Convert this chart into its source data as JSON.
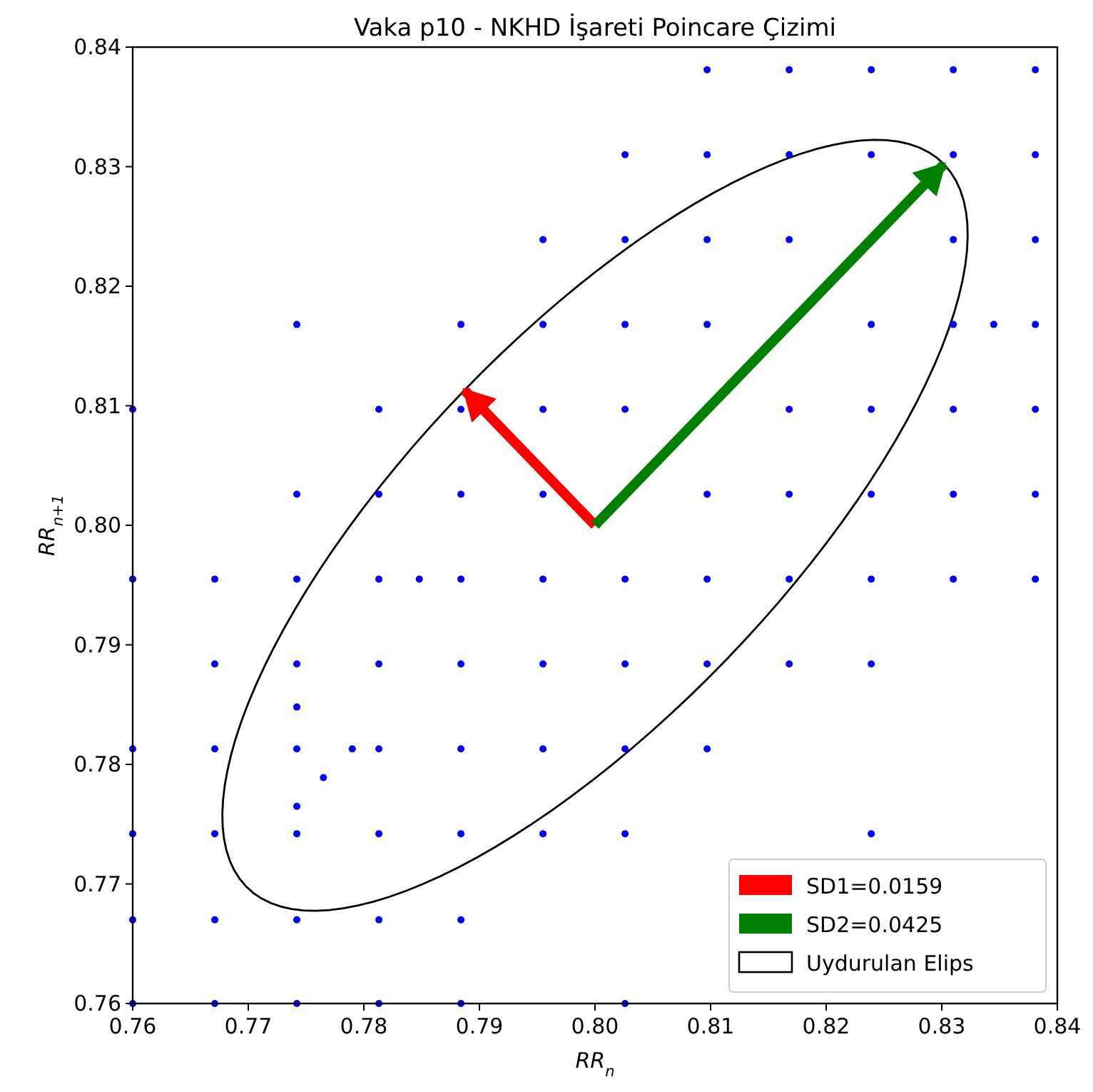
{
  "chart_data": {
    "type": "scatter",
    "title": "Vaka p10 - NKHD İşareti Poincare Çizimi",
    "xlabel": "RR$_{n}$",
    "ylabel": "RR$_{n+1}$",
    "xlim": [
      0.76,
      0.84
    ],
    "ylim": [
      0.76,
      0.84
    ],
    "xticks": [
      0.76,
      0.77,
      0.78,
      0.79,
      {
        "value": 0.8,
        "label": "0.80"
      },
      0.81,
      0.82,
      0.83,
      0.84
    ],
    "yticks": [
      0.76,
      0.77,
      0.78,
      0.79,
      {
        "value": 0.8,
        "label": "0.80"
      },
      0.81,
      0.82,
      0.83,
      0.84
    ],
    "grid": false,
    "legend": "bottom right",
    "marker": "circle",
    "series": [
      {
        "color": "#0000ff",
        "x": [
          0.8097,
          0.8168,
          0.8239,
          0.831,
          0.8381,
          0.8026,
          0.8097,
          0.8168,
          0.8239,
          0.831,
          0.8381,
          0.7955,
          0.8026,
          0.8097,
          0.8168,
          0.831,
          0.8381,
          0.7742,
          0.7884,
          0.7955,
          0.8026,
          0.8097,
          0.8239,
          0.831,
          0.8345,
          0.8381,
          0.76,
          0.7813,
          0.7884,
          0.7955,
          0.8026,
          0.8168,
          0.8239,
          0.831,
          0.8381,
          0.7742,
          0.7813,
          0.7884,
          0.7955,
          0.8097,
          0.8168,
          0.8239,
          0.831,
          0.8381,
          0.76,
          0.7671,
          0.7742,
          0.7813,
          0.7848,
          0.7884,
          0.7955,
          0.8026,
          0.8097,
          0.8168,
          0.8239,
          0.831,
          0.8381,
          0.7671,
          0.7742,
          0.7813,
          0.7884,
          0.7955,
          0.8026,
          0.8097,
          0.8168,
          0.8239,
          0.7742,
          0.76,
          0.7671,
          0.7742,
          0.779,
          0.7813,
          0.7884,
          0.7955,
          0.8026,
          0.8097,
          0.7765,
          0.7742,
          0.76,
          0.7671,
          0.7742,
          0.7813,
          0.7884,
          0.7955,
          0.8026,
          0.8239,
          0.76,
          0.7671,
          0.7742,
          0.7813,
          0.7884,
          0.76,
          0.7671,
          0.7742,
          0.7813,
          0.7884,
          0.8026
        ],
        "values": [
          0.8381,
          0.8381,
          0.8381,
          0.8381,
          0.8381,
          0.831,
          0.831,
          0.831,
          0.831,
          0.831,
          0.831,
          0.8239,
          0.8239,
          0.8239,
          0.8239,
          0.8239,
          0.8239,
          0.8168,
          0.8168,
          0.8168,
          0.8168,
          0.8168,
          0.8168,
          0.8168,
          0.8168,
          0.8168,
          0.8097,
          0.8097,
          0.8097,
          0.8097,
          0.8097,
          0.8097,
          0.8097,
          0.8097,
          0.8097,
          0.8026,
          0.8026,
          0.8026,
          0.8026,
          0.8026,
          0.8026,
          0.8026,
          0.8026,
          0.8026,
          0.7955,
          0.7955,
          0.7955,
          0.7955,
          0.7955,
          0.7955,
          0.7955,
          0.7955,
          0.7955,
          0.7955,
          0.7955,
          0.7955,
          0.7955,
          0.7884,
          0.7884,
          0.7884,
          0.7884,
          0.7884,
          0.7884,
          0.7884,
          0.7884,
          0.7884,
          0.7848,
          0.7813,
          0.7813,
          0.7813,
          0.7813,
          0.7813,
          0.7813,
          0.7813,
          0.7813,
          0.7813,
          0.7789,
          0.7765,
          0.7742,
          0.7742,
          0.7742,
          0.7742,
          0.7742,
          0.7742,
          0.7742,
          0.7742,
          0.767,
          0.767,
          0.767,
          0.767,
          0.767,
          0.76,
          0.76,
          0.76,
          0.76,
          0.76,
          0.76
        ]
      },
      {
        "type": "line",
        "name": "SD1=0.0159",
        "marker": "none",
        "color": "#ff0000",
        "x": [
          0.8,
          0.7887
        ],
        "values": [
          0.8,
          0.8113
        ]
      },
      {
        "type": "line",
        "name": "SD2=0.0425",
        "marker": "none",
        "color": "#008000",
        "x": [
          0.8,
          0.8302
        ],
        "values": [
          0.8,
          0.8302
        ]
      }
    ],
    "annotations": [
      "Uydurulan Elips"
    ]
  }
}
